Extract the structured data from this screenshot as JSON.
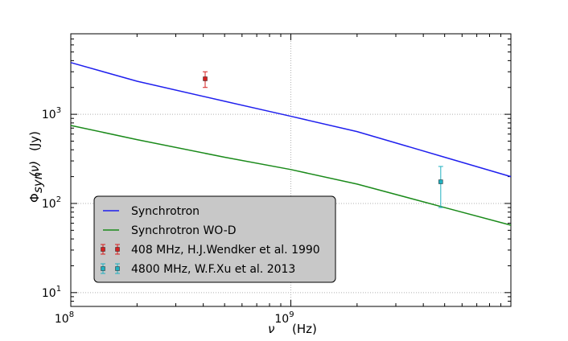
{
  "chart_data": {
    "type": "line",
    "title": "",
    "x_scale": "log",
    "y_scale": "log",
    "xlim": [
      100000000.0,
      10000000000.0
    ],
    "ylim": [
      7,
      8000
    ],
    "xlabel": "ν (Hz)",
    "ylabel": "Φsyn(ν) (Jy)",
    "grid": true,
    "legend_position": "lower-left",
    "x_ticks": [
      {
        "value": 100000000.0,
        "label": "10^8"
      },
      {
        "value": 1000000000.0,
        "label": "10^9"
      },
      {
        "value": 10000000000.0,
        "label": ""
      }
    ],
    "y_ticks": [
      {
        "value": 10,
        "label": "10^1"
      },
      {
        "value": 100,
        "label": "10^2"
      },
      {
        "value": 1000,
        "label": "10^3"
      }
    ],
    "series": [
      {
        "name": "Synchrotron",
        "kind": "line",
        "color": "#1f1fee",
        "x": [
          100000000.0,
          200000000.0,
          500000000.0,
          1000000000.0,
          2000000000.0,
          5000000000.0,
          10000000000.0
        ],
        "y": [
          3800,
          2350,
          1400,
          950,
          640,
          330,
          200
        ]
      },
      {
        "name": "Synchrotron WO-D",
        "kind": "line",
        "color": "#1a8a1a",
        "x": [
          100000000.0,
          200000000.0,
          500000000.0,
          1000000000.0,
          2000000000.0,
          5000000000.0,
          10000000000.0
        ],
        "y": [
          750,
          520,
          330,
          240,
          165,
          90,
          57
        ]
      },
      {
        "name": "408 MHz,  H.J.Wendker et al. 1990",
        "kind": "errorbar",
        "color": "#d62020",
        "x": [
          408000000.0
        ],
        "y": [
          2500
        ],
        "yerr_low": [
          500
        ],
        "yerr_high": [
          500
        ]
      },
      {
        "name": "4800 MHz,  W.F.Xu et al. 2013",
        "kind": "errorbar",
        "color": "#20b0c0",
        "x": [
          4800000000.0
        ],
        "y": [
          175
        ],
        "yerr_low": [
          85
        ],
        "yerr_high": [
          85
        ]
      }
    ]
  }
}
